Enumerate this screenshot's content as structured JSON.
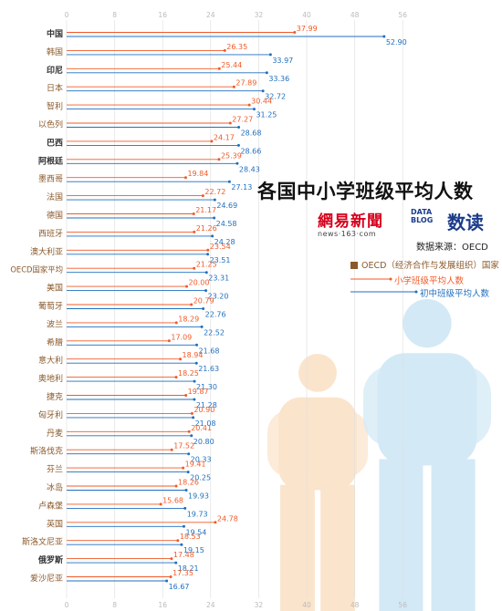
{
  "title": "各国中小学班级平均人数",
  "logos": {
    "netease_main": "網易新聞",
    "netease_sub": "news·163·com",
    "datablog": [
      "DATA",
      "BLOG"
    ],
    "datablog_cn": "数读"
  },
  "source": "数据来源：OECD",
  "legend": {
    "oecd": "OECD（经济合作与发展组织）国家",
    "primary": "小学班级平均人数",
    "secondary": "初中班级平均人数"
  },
  "colors": {
    "primary": "#f05a28",
    "secondary": "#1f6fbf",
    "oecd_box": "#8b5a2b",
    "label": "#333333",
    "label_oecd": "#8b5a2b",
    "grid": "#dddddd",
    "axis_tick": "#bbbbbb",
    "figure_small": "#fbe4cc",
    "figure_large": "#d3e9f6"
  },
  "chart_data": {
    "type": "bar",
    "orientation": "horizontal",
    "xlim": [
      0,
      56
    ],
    "ticks": [
      0,
      8,
      16,
      24,
      32,
      40,
      48,
      56
    ],
    "categories": [
      "中国",
      "韩国",
      "印尼",
      "日本",
      "智利",
      "以色列",
      "巴西",
      "阿根廷",
      "墨西哥",
      "法国",
      "德国",
      "西班牙",
      "澳大利亚",
      "OECD国家平均",
      "美国",
      "葡萄牙",
      "波兰",
      "希腊",
      "意大利",
      "奥地利",
      "捷克",
      "匈牙利",
      "丹麦",
      "斯洛伐克",
      "芬兰",
      "冰岛",
      "卢森堡",
      "英国",
      "斯洛文尼亚",
      "俄罗斯",
      "爱沙尼亚"
    ],
    "series": [
      {
        "name": "小学班级平均人数",
        "values": [
          37.99,
          26.35,
          25.44,
          27.89,
          30.44,
          27.27,
          24.17,
          25.39,
          19.84,
          22.72,
          21.17,
          21.26,
          23.54,
          21.25,
          20.0,
          20.79,
          18.29,
          17.09,
          18.94,
          18.25,
          19.87,
          20.9,
          20.41,
          17.52,
          19.41,
          18.26,
          15.68,
          24.78,
          18.53,
          17.48,
          17.35
        ]
      },
      {
        "name": "初中班级平均人数",
        "values": [
          52.9,
          33.97,
          33.36,
          32.72,
          31.25,
          28.68,
          28.66,
          28.43,
          27.13,
          24.69,
          24.58,
          24.28,
          23.51,
          23.31,
          23.2,
          22.76,
          22.52,
          21.68,
          21.63,
          21.3,
          21.28,
          21.08,
          20.8,
          20.33,
          20.25,
          19.93,
          19.73,
          19.54,
          19.15,
          18.21,
          16.67
        ]
      }
    ],
    "primary_labels": [
      "37.99",
      "26.35",
      "25.44",
      "27.89",
      "30.44",
      "27.27",
      "24.17",
      "25.39",
      "19.84",
      "22.72",
      "21.17",
      "21.26",
      "23.54",
      "21.25",
      "20.00",
      "20.79",
      "18.29",
      "17.09",
      "18.94",
      "18.25",
      "19.87",
      "20.90",
      "20.41",
      "17.52",
      "19.41",
      "18.26",
      "15.68",
      "24.78",
      "18.53",
      "17.48",
      "17.35"
    ],
    "secondary_labels": [
      "52.90",
      "33.97",
      "33.36",
      "32.72",
      "31.25",
      "28.68",
      "28.66",
      "28.43",
      "27.13",
      "24.69",
      "24.58",
      "24.28",
      "23.51",
      "23.31",
      "23.20",
      "22.76",
      "22.52",
      "21.68",
      "21.63",
      "21.30",
      "21.28",
      "21.08",
      "20.80",
      "20.33",
      "20.25",
      "19.93",
      "19.73",
      "19.54",
      "19.15",
      "18.21",
      "16.67"
    ],
    "oecd_members": [
      "韩国",
      "日本",
      "智利",
      "以色列",
      "墨西哥",
      "法国",
      "德国",
      "西班牙",
      "澳大利亚",
      "美国",
      "葡萄牙",
      "波兰",
      "希腊",
      "意大利",
      "奥地利",
      "捷克",
      "匈牙利",
      "丹麦",
      "斯洛伐克",
      "芬兰",
      "冰岛",
      "卢森堡",
      "英国",
      "斯洛文尼亚",
      "爱沙尼亚"
    ],
    "average_category": "OECD国家平均"
  }
}
